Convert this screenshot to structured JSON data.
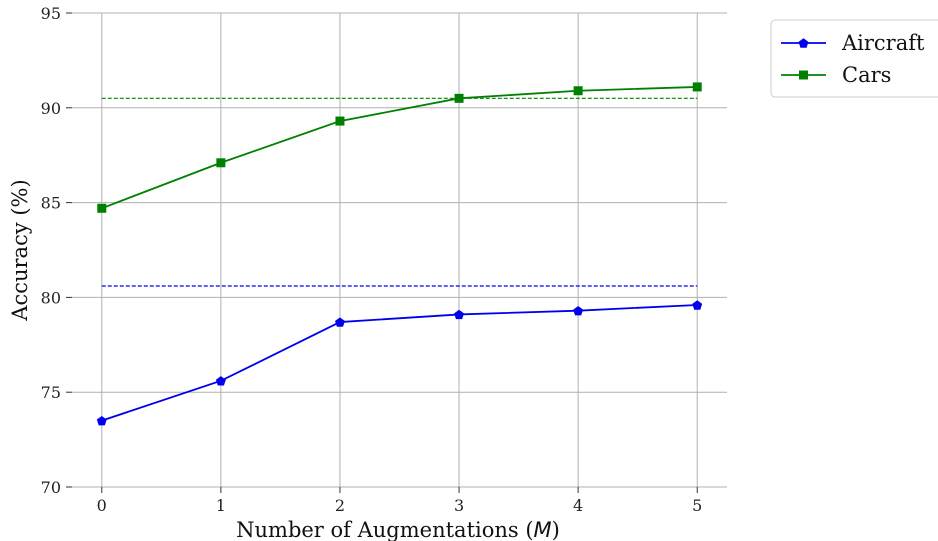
{
  "chart_data": {
    "type": "line",
    "xlabel": "Number of Augmentations ($M$)",
    "ylabel": "Accuracy (%)",
    "x": [
      0,
      1,
      2,
      3,
      4,
      5
    ],
    "xlim": [
      -0.25,
      5.25
    ],
    "ylim": [
      70,
      95
    ],
    "xticks": [
      0,
      1,
      2,
      3,
      4,
      5
    ],
    "yticks": [
      70,
      75,
      80,
      85,
      90,
      95
    ],
    "grid": true,
    "legend_position": "outside upper right",
    "series": [
      {
        "name": "Aircraft",
        "color": "#0000ee",
        "marker": "pentagon",
        "values": [
          73.5,
          75.6,
          78.7,
          79.1,
          79.3,
          79.6
        ],
        "baseline": 80.6
      },
      {
        "name": "Cars",
        "color": "#008000",
        "marker": "square",
        "values": [
          84.7,
          87.1,
          89.3,
          90.5,
          90.9,
          91.1
        ],
        "baseline": 90.5
      }
    ]
  }
}
